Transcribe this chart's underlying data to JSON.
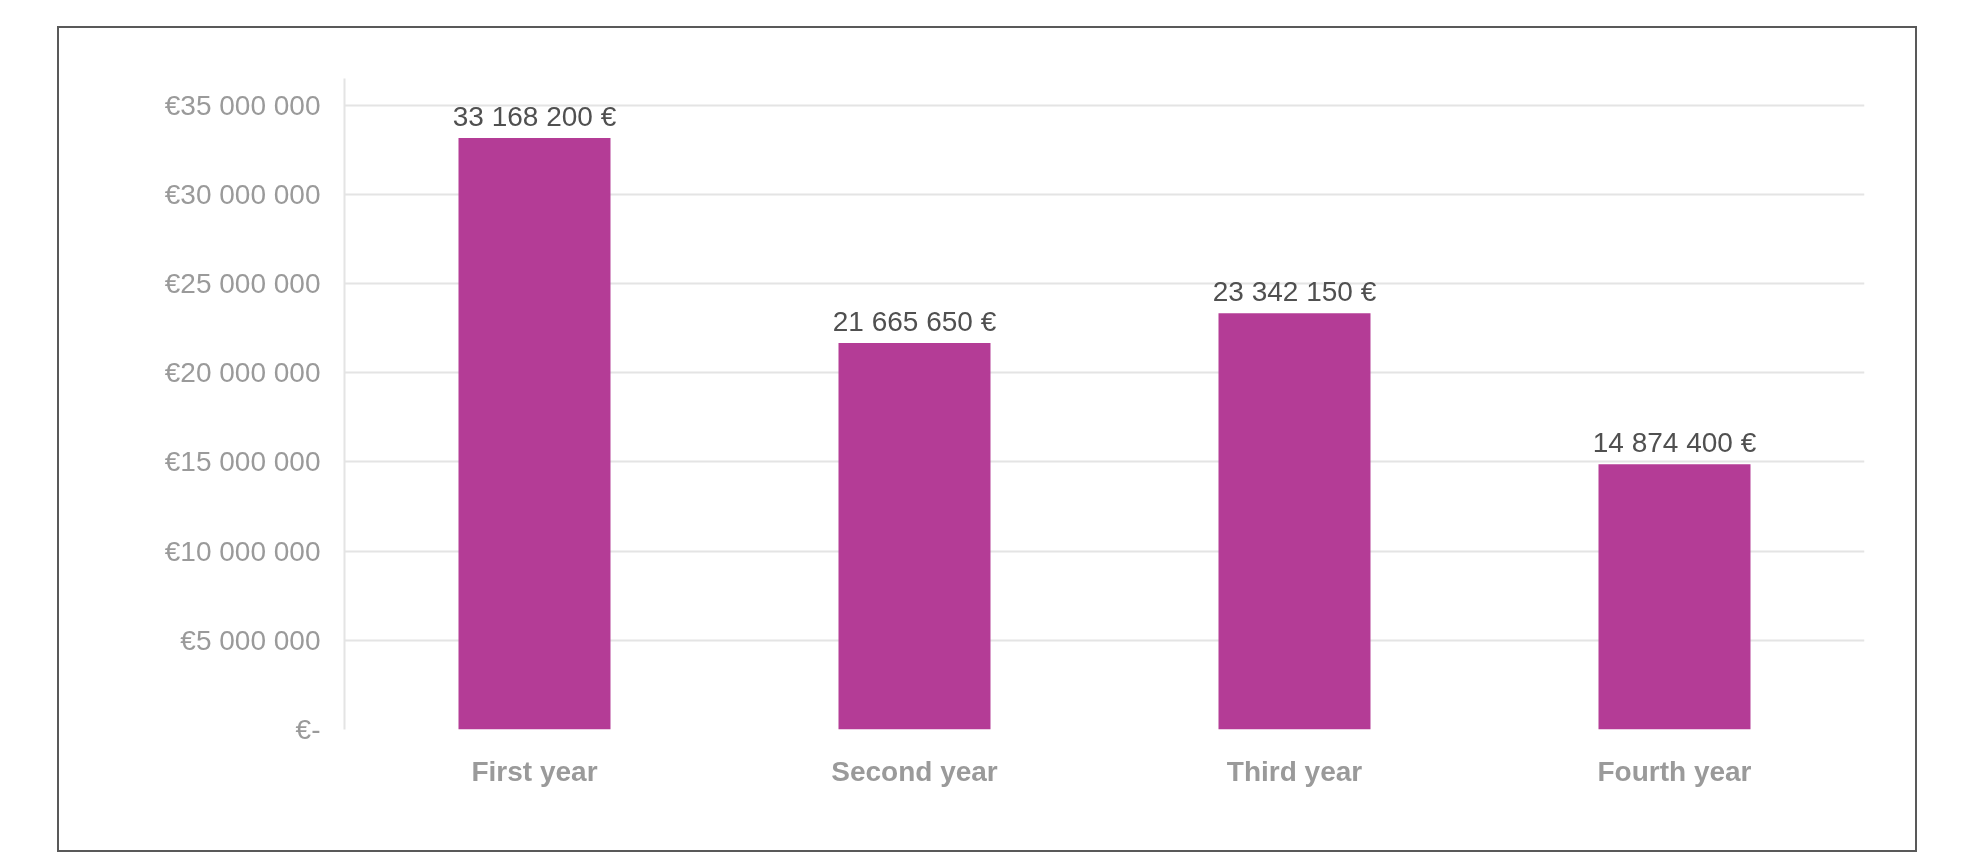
{
  "chart_data": {
    "type": "bar",
    "categories": [
      "First year",
      "Second year",
      "Third year",
      "Fourth year"
    ],
    "values": [
      33168200,
      21665650,
      23342150,
      14874400
    ],
    "color": "#b43c96",
    "value_labels": [
      "33 168 200 €",
      "21 665 650 €",
      "23 342 150 €",
      "14 874 400 €"
    ],
    "ylim": [
      0,
      36500000
    ],
    "yticks": [
      {
        "value": 0,
        "label": "€-"
      },
      {
        "value": 5000000,
        "label": "€5 000 000"
      },
      {
        "value": 10000000,
        "label": "€10 000 000"
      },
      {
        "value": 15000000,
        "label": "€15 000 000"
      },
      {
        "value": 20000000,
        "label": "€20 000 000"
      },
      {
        "value": 25000000,
        "label": "€25 000 000"
      },
      {
        "value": 30000000,
        "label": "€30 000 000"
      },
      {
        "value": 35000000,
        "label": "€35 000 000"
      }
    ],
    "grid": "y"
  }
}
